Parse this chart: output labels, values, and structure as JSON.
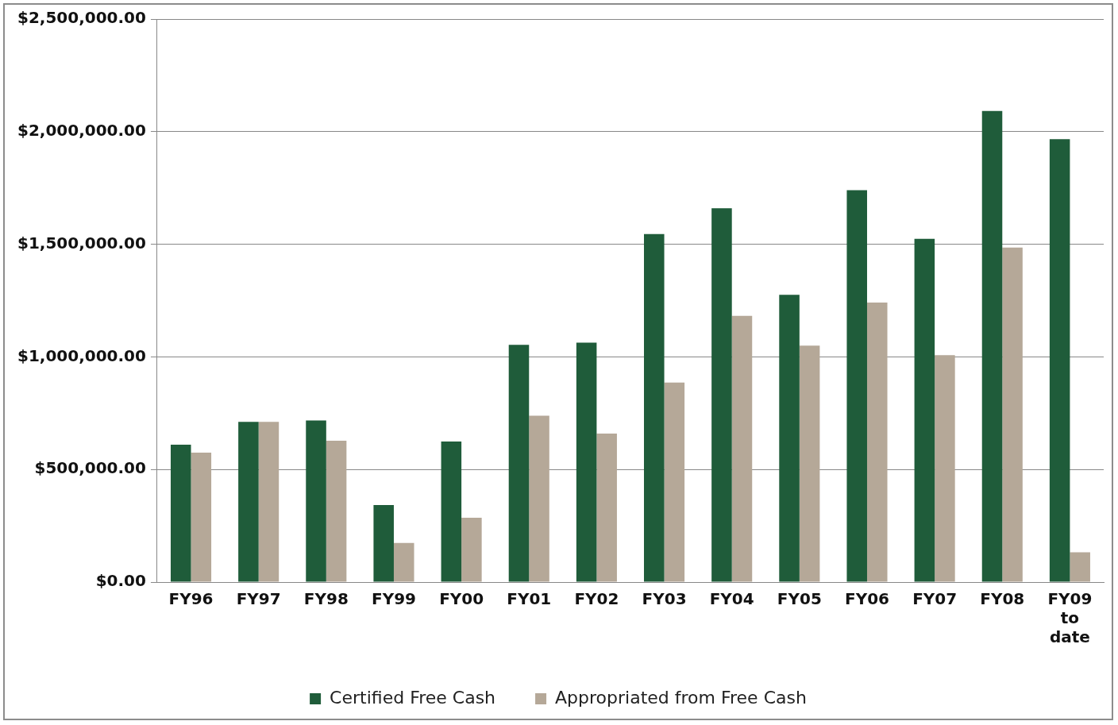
{
  "chart_data": {
    "type": "bar",
    "categories": [
      "FY96",
      "FY97",
      "FY98",
      "FY99",
      "FY00",
      "FY01",
      "FY02",
      "FY03",
      "FY04",
      "FY05",
      "FY06",
      "FY07",
      "FY08",
      "FY09 to date"
    ],
    "series": [
      {
        "name": "Certified Free Cash",
        "color": "#1f5c3a",
        "values": [
          610000,
          711000,
          718000,
          342000,
          624000,
          1053000,
          1063000,
          1545000,
          1660000,
          1276000,
          1740000,
          1524000,
          2092000,
          1967000
        ]
      },
      {
        "name": "Appropriated from Free Cash",
        "color": "#b5a898",
        "values": [
          575000,
          711000,
          628000,
          174000,
          286000,
          739000,
          659000,
          886000,
          1182000,
          1050000,
          1241000,
          1008000,
          1485000,
          132000
        ]
      }
    ],
    "ylim": [
      0,
      2500000
    ],
    "yticks": [
      {
        "value": 0,
        "label": "$0.00"
      },
      {
        "value": 500000,
        "label": "$500,000.00"
      },
      {
        "value": 1000000,
        "label": "$1,000,000.00"
      },
      {
        "value": 1500000,
        "label": "$1,500,000.00"
      },
      {
        "value": 2000000,
        "label": "$2,000,000.00"
      },
      {
        "value": 2500000,
        "label": "$2,500,000.00"
      }
    ],
    "grid": "y",
    "legend": "bottom"
  }
}
